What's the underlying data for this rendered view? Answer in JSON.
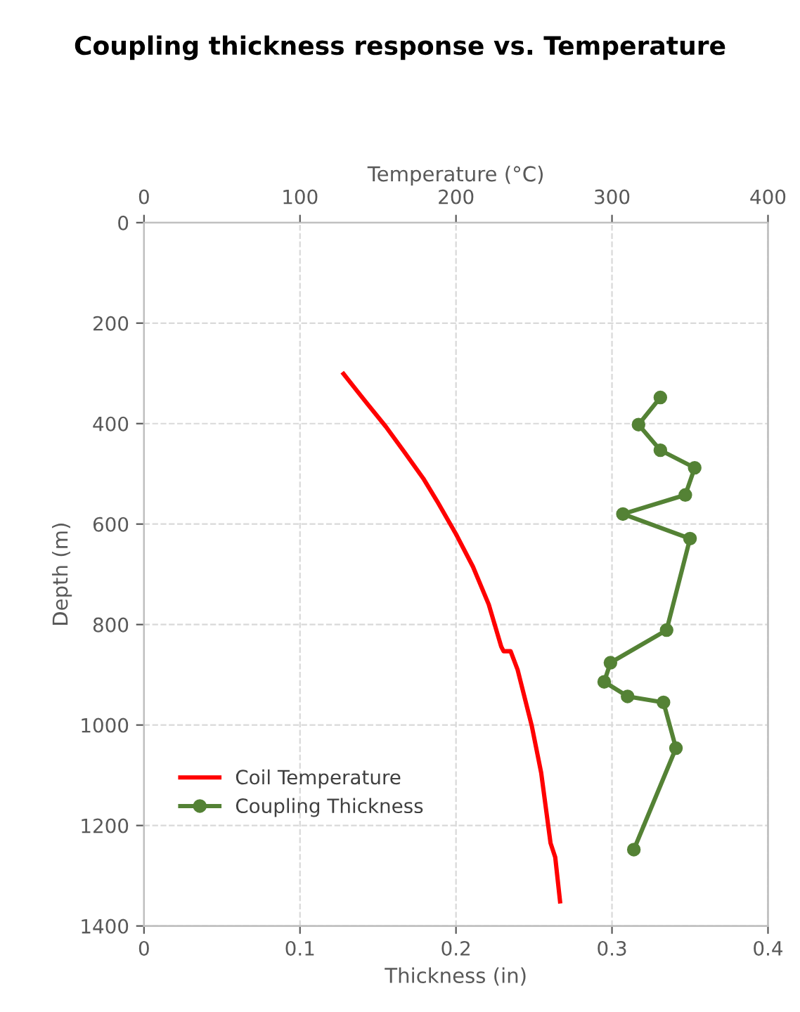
{
  "chart_data": {
    "type": "line",
    "title": "Coupling thickness response vs. Temperature",
    "xlabel": "Thickness (in)",
    "x2label": "Temperature (°C)",
    "ylabel": "Depth (m)",
    "xlim": [
      0,
      0.4
    ],
    "xticks": [
      0,
      0.1,
      0.2,
      0.3,
      0.4
    ],
    "x2lim": [
      0,
      400
    ],
    "x2ticks": [
      0,
      100,
      200,
      300,
      400
    ],
    "ylim": [
      1400,
      0
    ],
    "yticks": [
      0,
      200,
      400,
      600,
      800,
      1000,
      1200,
      1400
    ],
    "grid": true,
    "legend": "bottom left",
    "series": [
      {
        "name": "Coil Temperature",
        "color": "#ff0000",
        "axis": "x2",
        "marker": "none",
        "x": [
          127.9,
          143,
          155,
          167,
          179,
          188,
          200,
          210.9,
          221,
          229,
          230.5,
          235,
          239.5,
          248.6,
          254.6,
          260.6,
          263.6,
          266.7
        ],
        "values": [
          301,
          360,
          406,
          457,
          509,
          555,
          620,
          685,
          760,
          844,
          853,
          853,
          890,
          1002,
          1095,
          1235,
          1263,
          1351
        ]
      },
      {
        "name": "Coupling Thickness",
        "color": "#548235",
        "marker": "circle",
        "x": [
          0.331,
          0.317,
          0.331,
          0.353,
          0.347,
          0.307,
          0.35,
          0.335,
          0.299,
          0.295,
          0.31,
          0.333,
          0.341,
          0.314
        ],
        "values": [
          348,
          402,
          453,
          488,
          542,
          580,
          629,
          811,
          876,
          914,
          943,
          955,
          1046,
          1248
        ]
      }
    ]
  }
}
